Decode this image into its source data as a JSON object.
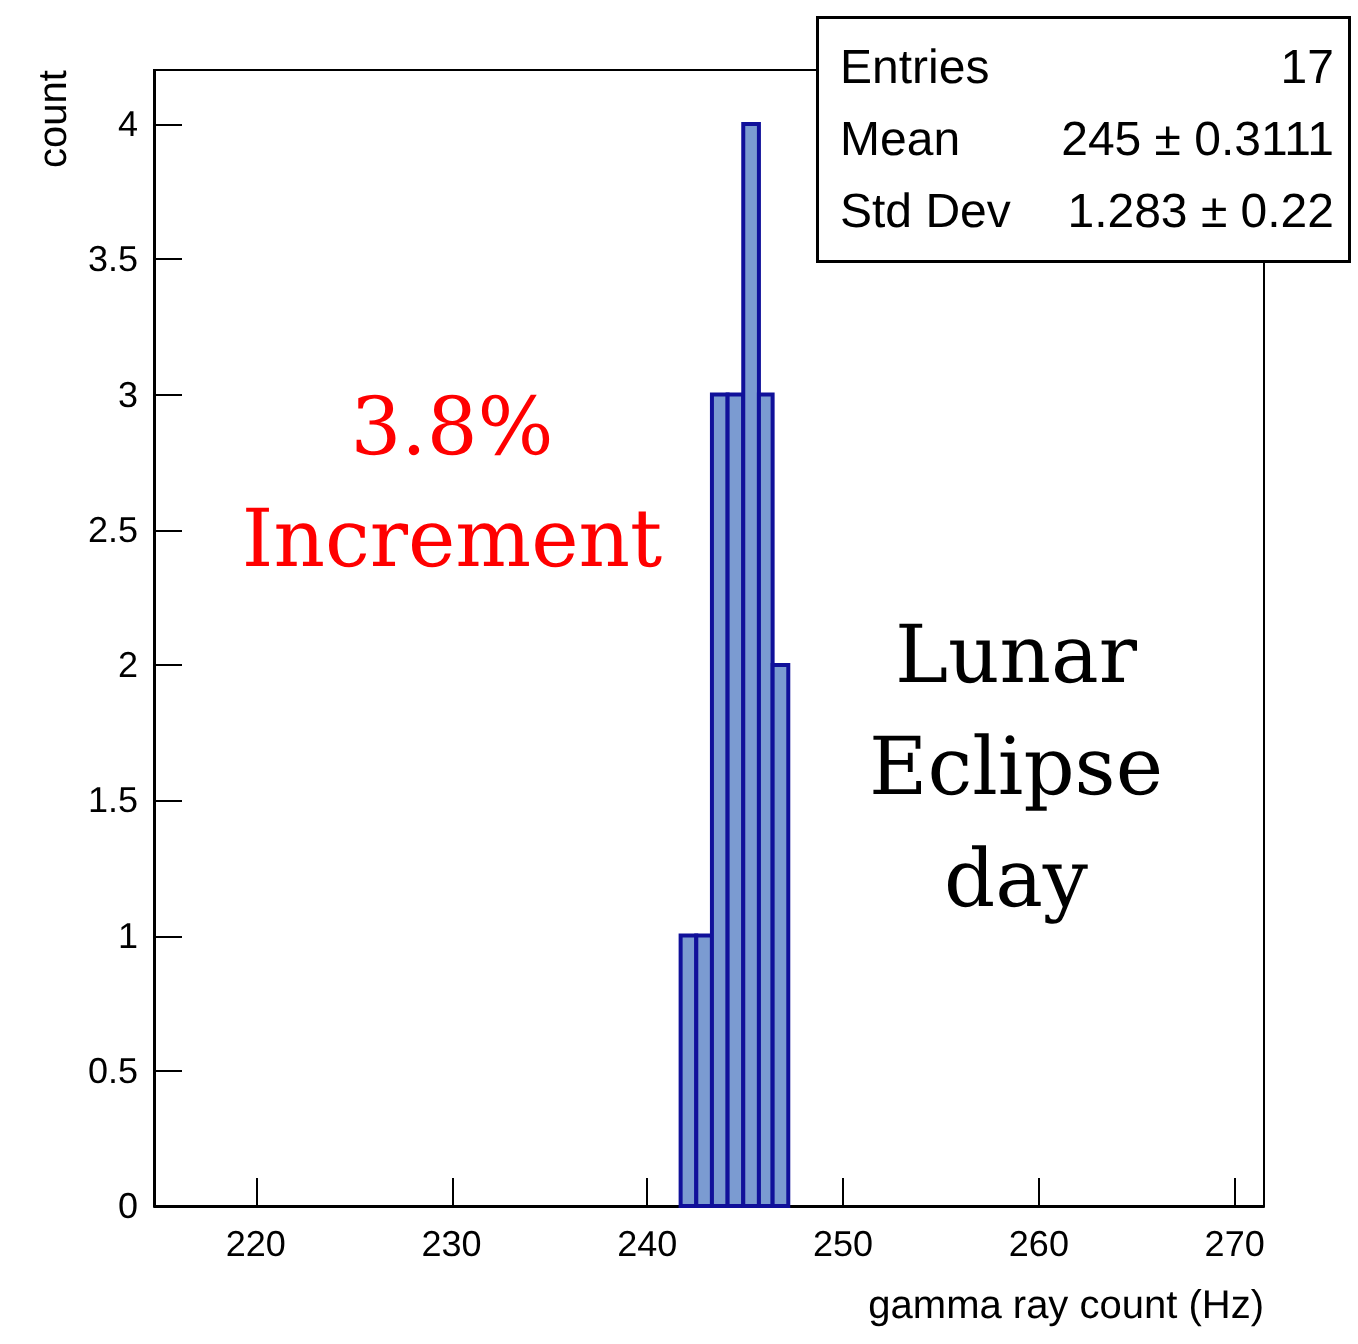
{
  "chart_data": {
    "type": "histogram",
    "xlabel": "gamma ray count (Hz)",
    "ylabel": "count",
    "bins": [
      241.7,
      242.5,
      243.3,
      244.1,
      244.9,
      245.7,
      246.4,
      247.2
    ],
    "values": [
      1,
      1,
      3,
      3,
      4,
      3,
      2
    ],
    "color": "#7b9bd1",
    "xlim": [
      214.8,
      271.5
    ],
    "xticks": [
      220,
      230,
      240,
      250,
      260,
      270
    ],
    "ylim": [
      0,
      4.2
    ],
    "yticks": [
      0,
      0.5,
      1,
      1.5,
      2,
      2.5,
      3,
      3.5,
      4
    ],
    "grid": false,
    "annotations": [
      "Entries 17",
      "Mean 245 ± 0.3111",
      "Std Dev 1.283 ± 0.22",
      "3.8%\nIncrement",
      "Lunar\nEclipse\nday"
    ]
  }
}
